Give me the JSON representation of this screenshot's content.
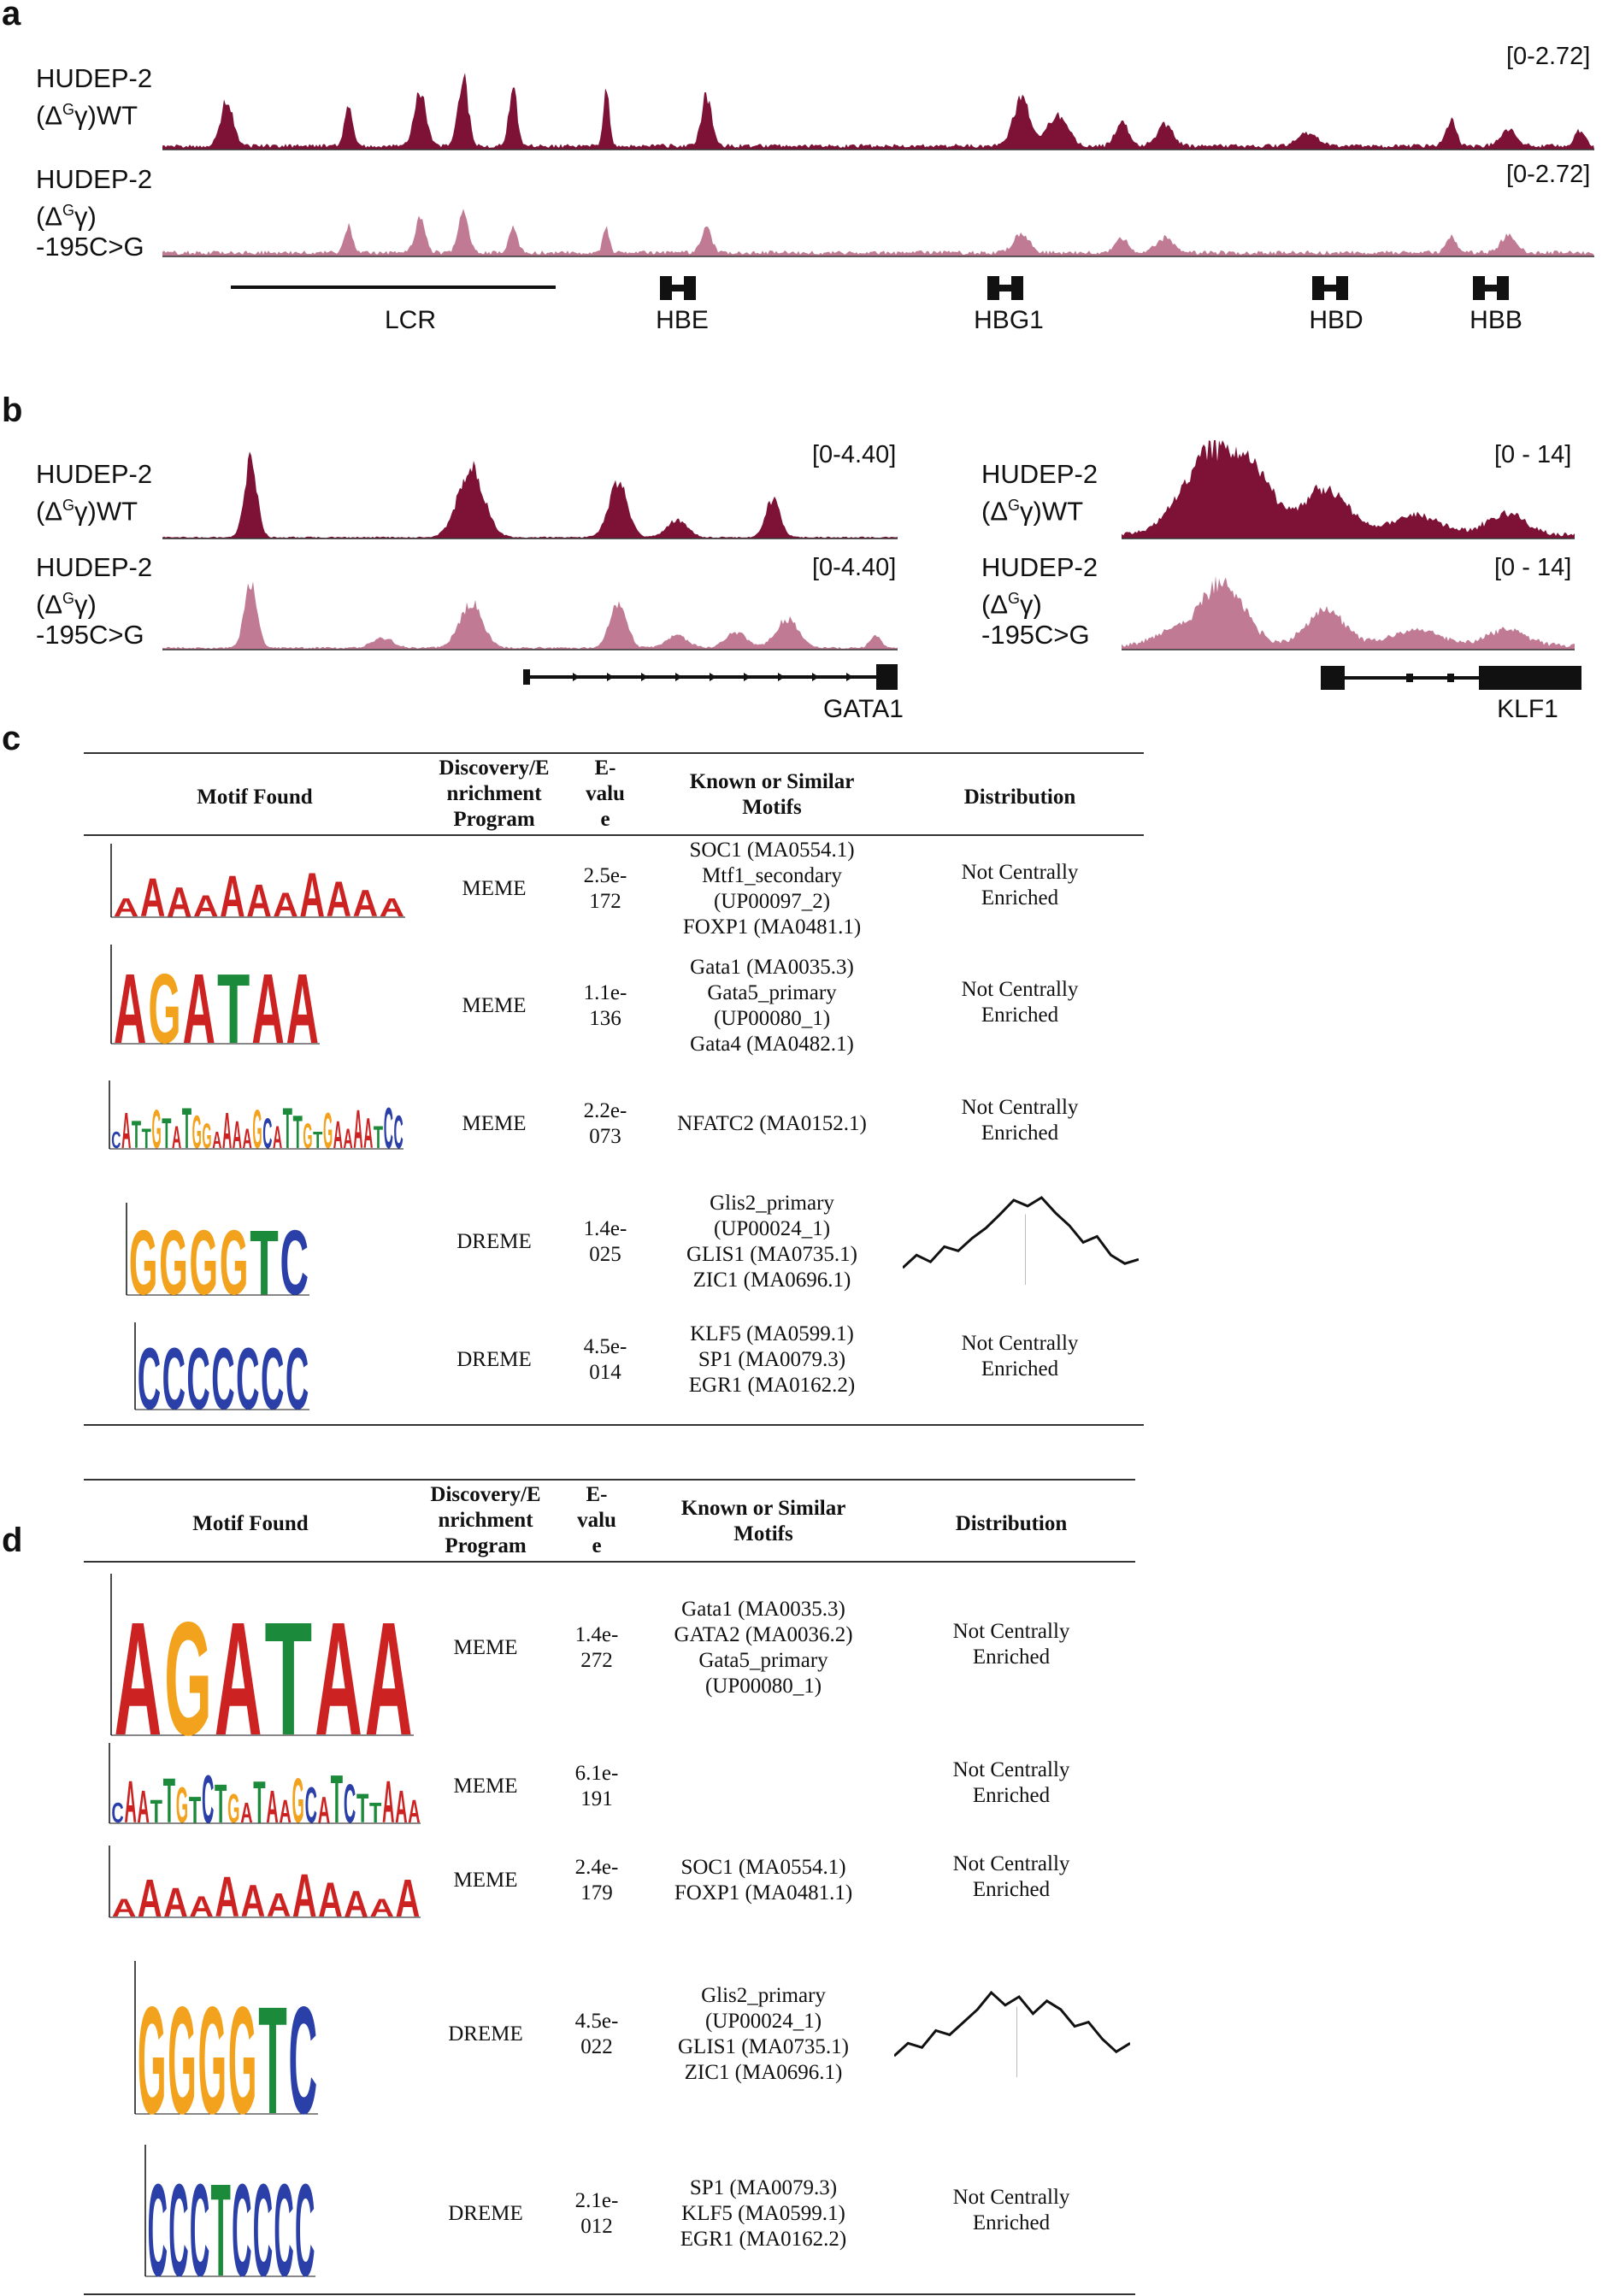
{
  "colors": {
    "wt": "#7d1236",
    "mut": "#c07a94"
  },
  "panel_a": {
    "letter": "a",
    "tracks": [
      {
        "label_line1": "HUDEP-2",
        "label_line2": "(Δ",
        "sup": "G",
        "label_line2b": "γ)WT",
        "label_line3": "",
        "range": "[0-2.72]"
      },
      {
        "label_line1": "HUDEP-2",
        "label_line2": "(Δ",
        "sup": "G",
        "label_line2b": "γ)",
        "label_line3": "-195C>G",
        "range": "[0-2.72]"
      }
    ],
    "genes": [
      "LCR",
      "HBE",
      "HBG1",
      "HBD",
      "HBB"
    ]
  },
  "panel_b": {
    "letter": "b",
    "left": {
      "tracks": [
        {
          "label_line1": "HUDEP-2",
          "label_line2": "(Δ",
          "sup": "G",
          "label_line2b": "γ)WT",
          "label_line3": "",
          "range": "[0-4.40]"
        },
        {
          "label_line1": "HUDEP-2",
          "label_line2": "(Δ",
          "sup": "G",
          "label_line2b": "γ)",
          "label_line3": "-195C>G",
          "range": "[0-4.40]"
        }
      ],
      "gene": "GATA1"
    },
    "right": {
      "tracks": [
        {
          "label_line1": "HUDEP-2",
          "label_line2": "(Δ",
          "sup": "G",
          "label_line2b": "γ)WT",
          "label_line3": "",
          "range": "[0 - 14]"
        },
        {
          "label_line1": "HUDEP-2",
          "label_line2": "(Δ",
          "sup": "G",
          "label_line2b": "γ)",
          "label_line3": "-195C>G",
          "range": "[0 - 14]"
        }
      ],
      "gene": "KLF1"
    }
  },
  "table_headers": {
    "motif": "Motif Found",
    "program": [
      "Discovery/E",
      "nrichment",
      "Program"
    ],
    "evalue": [
      "E-",
      "valu",
      "e"
    ],
    "known": [
      "Known or Similar",
      "Motifs"
    ],
    "dist": "Distribution"
  },
  "panel_c": {
    "letter": "c",
    "rows": [
      {
        "logo": "AAAAAAAAAAA",
        "program": "MEME",
        "evalue": [
          "2.5e-",
          "172"
        ],
        "known": [
          "SOC1 (MA0554.1)",
          "Mtf1_secondary",
          "(UP00097_2)",
          "FOXP1 (MA0481.1)"
        ],
        "dist": [
          "Not Centrally",
          "Enriched"
        ]
      },
      {
        "logo": "AGATAA",
        "program": "MEME",
        "evalue": [
          "1.1e-",
          "136"
        ],
        "known": [
          "Gata1 (MA0035.3)",
          "Gata5_primary",
          "(UP00080_1)",
          "Gata4 (MA0482.1)"
        ],
        "dist": [
          "Not Centrally",
          "Enriched"
        ]
      },
      {
        "logo": "CATTGTATGGAAAAGCATTGTGAAAATCC",
        "program": "MEME",
        "evalue": [
          "2.2e-",
          "073"
        ],
        "known": [
          "NFATC2 (MA0152.1)"
        ],
        "dist": [
          "Not Centrally",
          "Enriched"
        ]
      },
      {
        "logo": "GGGGTC",
        "program": "DREME",
        "evalue": [
          "1.4e-",
          "025"
        ],
        "known": [
          "Glis2_primary",
          "(UP00024_1)",
          "GLIS1 (MA0735.1)",
          "ZIC1 (MA0696.1)"
        ],
        "dist": [],
        "dist_curve": [
          0.15,
          0.3,
          0.22,
          0.4,
          0.35,
          0.5,
          0.62,
          0.78,
          0.95,
          0.88,
          0.98,
          0.8,
          0.65,
          0.45,
          0.52,
          0.3,
          0.2,
          0.25
        ]
      },
      {
        "logo": "CCCCCCC",
        "program": "DREME",
        "evalue": [
          "4.5e-",
          "014"
        ],
        "known": [
          "KLF5 (MA0599.1)",
          "SP1 (MA0079.3)",
          "EGR1 (MA0162.2)"
        ],
        "dist": [
          "Not Centrally",
          "Enriched"
        ]
      }
    ]
  },
  "panel_d": {
    "letter": "d",
    "rows": [
      {
        "logo": "AGATAA",
        "program": "MEME",
        "evalue": [
          "1.4e-",
          "272"
        ],
        "known": [
          "Gata1 (MA0035.3)",
          "GATA2 (MA0036.2)",
          "Gata5_primary",
          "(UP00080_1)"
        ],
        "dist": [
          "Not Centrally",
          "Enriched"
        ]
      },
      {
        "logo": "CAATTGTCTGATAAGCATCTTAAA",
        "program": "MEME",
        "evalue": [
          "6.1e-",
          "191"
        ],
        "known": [],
        "dist": [
          "Not Centrally",
          "Enriched"
        ]
      },
      {
        "logo": "AAAAAAAAAAAA",
        "program": "MEME",
        "evalue": [
          "2.4e-",
          "179"
        ],
        "known": [
          "SOC1 (MA0554.1)",
          "FOXP1 (MA0481.1)"
        ],
        "dist": [
          "Not Centrally",
          "Enriched"
        ]
      },
      {
        "logo": "GGGGTC",
        "program": "DREME",
        "evalue": [
          "4.5e-",
          "022"
        ],
        "known": [
          "Glis2_primary",
          "(UP00024_1)",
          "GLIS1 (MA0735.1)",
          "ZIC1 (MA0696.1)"
        ],
        "dist": [],
        "dist_curve": [
          0.2,
          0.35,
          0.3,
          0.5,
          0.45,
          0.6,
          0.75,
          0.95,
          0.8,
          0.9,
          0.7,
          0.85,
          0.75,
          0.55,
          0.6,
          0.4,
          0.25,
          0.35
        ]
      },
      {
        "logo": "CCCTCCCC",
        "program": "DREME",
        "evalue": [
          "2.1e-",
          "012"
        ],
        "known": [
          "SP1 (MA0079.3)",
          "KLF5 (MA0599.1)",
          "EGR1 (MA0162.2)"
        ],
        "dist": [
          "Not Centrally",
          "Enriched"
        ]
      }
    ]
  }
}
